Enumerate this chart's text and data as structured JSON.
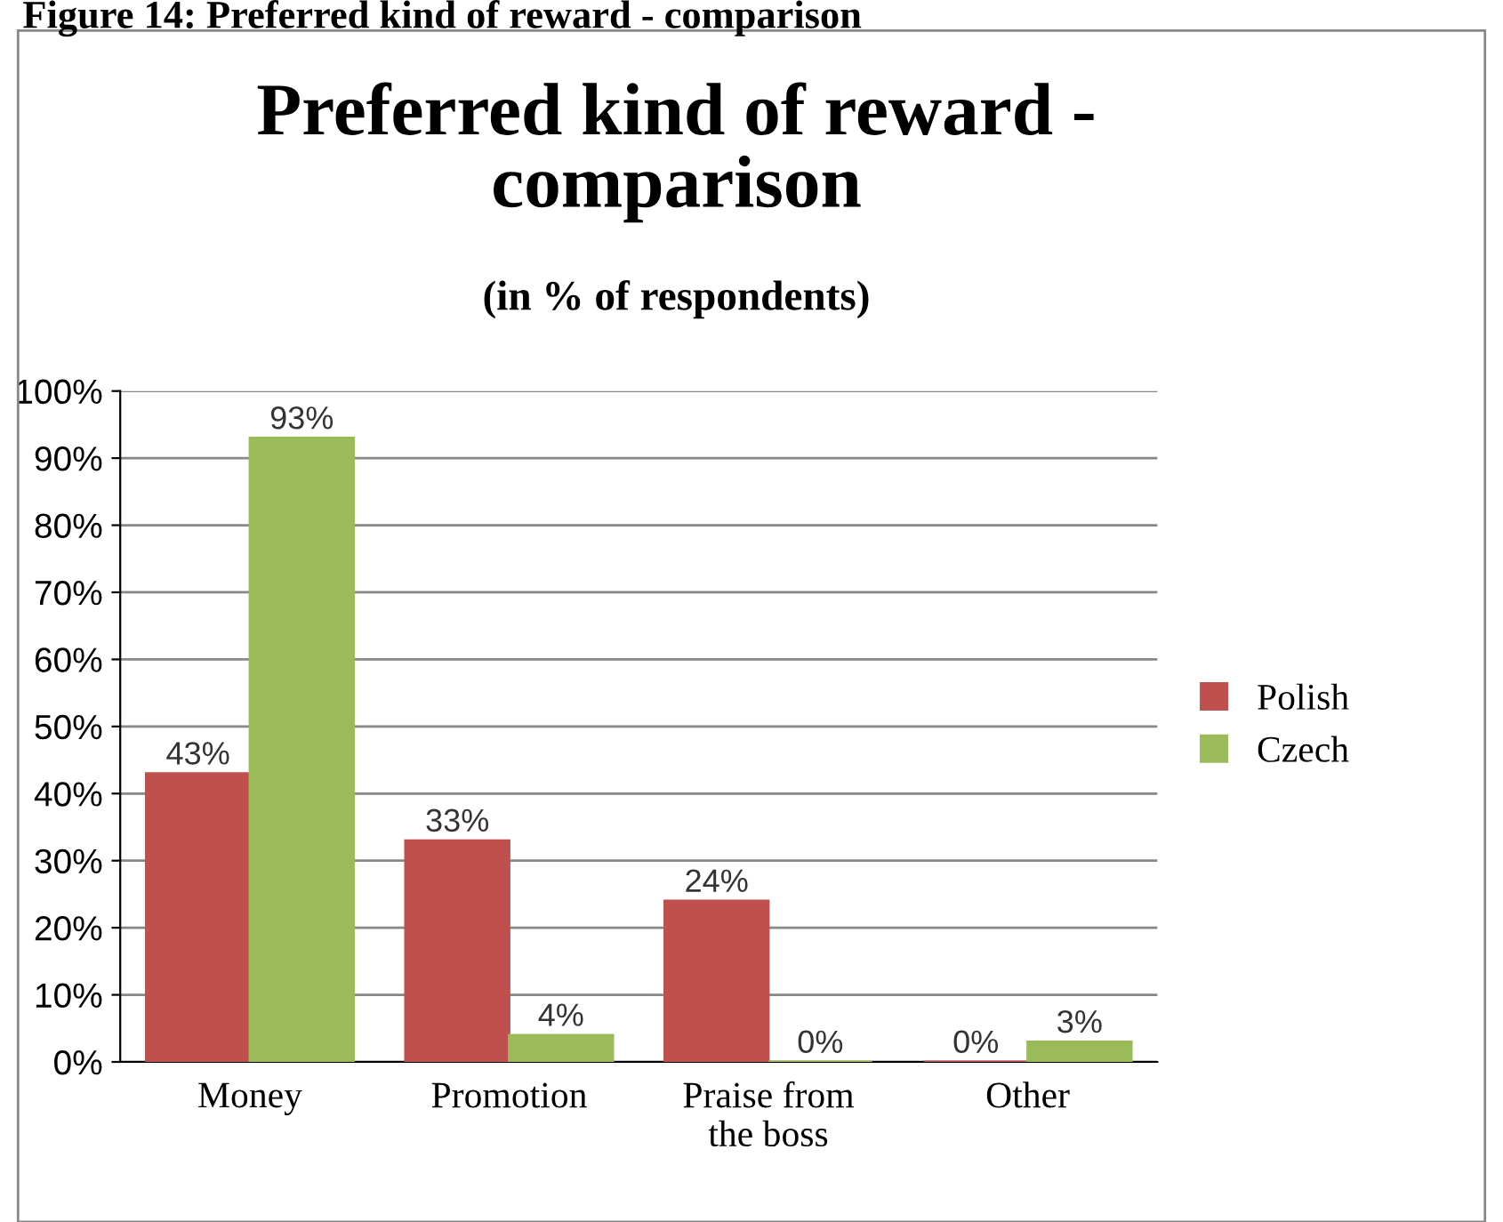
{
  "chart_data": {
    "type": "bar",
    "title": "Preferred kind of reward - comparison",
    "subtitle": "(in % of respondents)",
    "annotations": [
      "Figure 14: Preferred kind of reward - comparison"
    ],
    "categories": [
      "Money",
      "Promotion",
      "Praise from the boss",
      "Other"
    ],
    "series": [
      {
        "name": "Polish",
        "color": "#c0504d",
        "values": [
          43,
          33,
          24,
          0
        ],
        "value_labels": [
          "43%",
          "33%",
          "24%",
          "0%"
        ]
      },
      {
        "name": "Czech",
        "color": "#9bbb59",
        "values": [
          93,
          4,
          0,
          3
        ],
        "value_labels": [
          "93%",
          "4%",
          "0%",
          "3%"
        ]
      }
    ],
    "ylim": [
      0,
      100
    ],
    "yticks": [
      {
        "value": 0,
        "label": "0%"
      },
      {
        "value": 10,
        "label": "10%"
      },
      {
        "value": 20,
        "label": "20%"
      },
      {
        "value": 30,
        "label": "30%"
      },
      {
        "value": 40,
        "label": "40%"
      },
      {
        "value": 50,
        "label": "50%"
      },
      {
        "value": 60,
        "label": "60%"
      },
      {
        "value": 70,
        "label": "70%"
      },
      {
        "value": 80,
        "label": "80%"
      },
      {
        "value": 90,
        "label": "90%"
      },
      {
        "value": 100,
        "label": "100%"
      }
    ],
    "grid": "y",
    "legend": "right"
  }
}
